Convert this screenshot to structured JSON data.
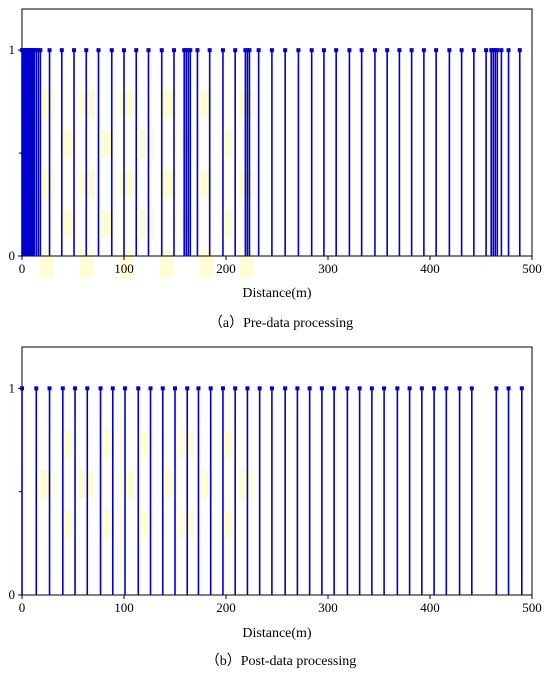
{
  "chart_data": [
    {
      "type": "stem",
      "xlabel": "Distance(m)",
      "ylabel": "",
      "xlim": [
        0,
        500
      ],
      "ylim": [
        0,
        1.2
      ],
      "xticks": [
        0,
        100,
        200,
        300,
        400,
        500
      ],
      "yticks": [
        0,
        1
      ],
      "caption": "（a）Pre-data processing",
      "color": "#0000cc",
      "x": [
        0,
        1,
        2,
        3,
        4,
        5,
        6,
        7,
        8,
        9,
        10,
        11,
        12,
        14,
        16,
        18,
        27,
        39,
        51,
        63,
        75,
        88,
        100,
        112,
        124,
        137,
        149,
        159,
        161,
        163,
        165,
        172,
        184,
        197,
        209,
        219,
        221,
        223,
        232,
        245,
        258,
        271,
        284,
        296,
        308,
        321,
        333,
        346,
        358,
        370,
        382,
        394,
        406,
        419,
        431,
        443,
        455,
        460,
        462,
        464,
        466,
        470,
        477,
        488
      ],
      "y_value": 1
    },
    {
      "type": "stem",
      "xlabel": "Distance(m)",
      "ylabel": "",
      "xlim": [
        0,
        500
      ],
      "ylim": [
        0,
        1.2
      ],
      "xticks": [
        0,
        100,
        200,
        300,
        400,
        500
      ],
      "yticks": [
        0,
        1
      ],
      "caption": "（b）Post-data processing",
      "color": "#0000cc",
      "x": [
        0,
        14,
        27,
        40,
        52,
        64,
        77,
        89,
        101,
        114,
        126,
        138,
        150,
        162,
        173,
        185,
        197,
        209,
        221,
        233,
        245,
        258,
        270,
        282,
        294,
        306,
        319,
        331,
        343,
        355,
        368,
        380,
        392,
        404,
        416,
        429,
        441,
        465,
        477,
        490
      ],
      "y_value": 1
    }
  ]
}
